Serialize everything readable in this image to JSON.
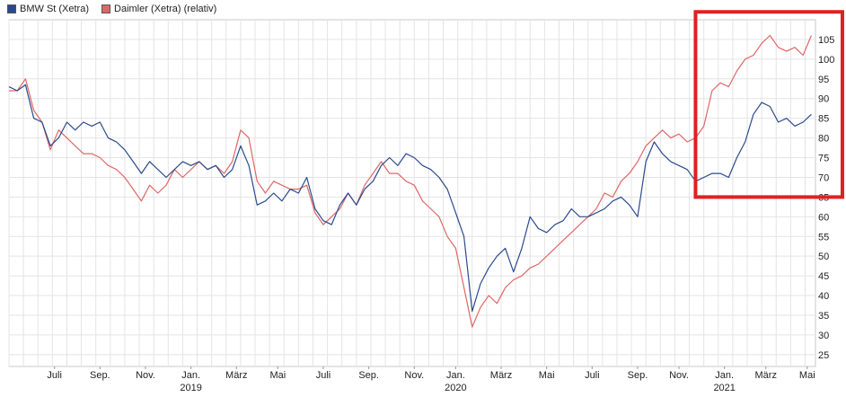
{
  "chart_data": {
    "type": "line",
    "series": [
      {
        "name": "BMW St (Xetra)",
        "color": "#2a4a8c",
        "points": [
          [
            0,
            93
          ],
          [
            2,
            92
          ],
          [
            4,
            93.5
          ],
          [
            6,
            85
          ],
          [
            8,
            84
          ],
          [
            10,
            78
          ],
          [
            12,
            80
          ],
          [
            14,
            84
          ],
          [
            16,
            82
          ],
          [
            18,
            84
          ],
          [
            20,
            83
          ],
          [
            22,
            84
          ],
          [
            24,
            80
          ],
          [
            26,
            79
          ],
          [
            28,
            77
          ],
          [
            30,
            74
          ],
          [
            32,
            71
          ],
          [
            34,
            74
          ],
          [
            36,
            72
          ],
          [
            38,
            70
          ],
          [
            40,
            72
          ],
          [
            42,
            74
          ],
          [
            44,
            73
          ],
          [
            46,
            74
          ],
          [
            48,
            72
          ],
          [
            50,
            73
          ],
          [
            52,
            70
          ],
          [
            54,
            72
          ],
          [
            56,
            78
          ],
          [
            58,
            73
          ],
          [
            60,
            63
          ],
          [
            62,
            64
          ],
          [
            64,
            66
          ],
          [
            66,
            64
          ],
          [
            68,
            67
          ],
          [
            70,
            66
          ],
          [
            72,
            70
          ],
          [
            74,
            62
          ],
          [
            76,
            59
          ],
          [
            78,
            58
          ],
          [
            80,
            63
          ],
          [
            82,
            66
          ],
          [
            84,
            63
          ],
          [
            86,
            67
          ],
          [
            88,
            69
          ],
          [
            90,
            73
          ],
          [
            92,
            75
          ],
          [
            94,
            73
          ],
          [
            96,
            76
          ],
          [
            98,
            75
          ],
          [
            100,
            73
          ],
          [
            102,
            72
          ],
          [
            104,
            70
          ],
          [
            106,
            67
          ],
          [
            108,
            61
          ],
          [
            110,
            55
          ],
          [
            112,
            36
          ],
          [
            114,
            43
          ],
          [
            116,
            47
          ],
          [
            118,
            50
          ],
          [
            120,
            52
          ],
          [
            122,
            46
          ],
          [
            124,
            52
          ],
          [
            126,
            60
          ],
          [
            128,
            57
          ],
          [
            130,
            56
          ],
          [
            132,
            58
          ],
          [
            134,
            59
          ],
          [
            136,
            62
          ],
          [
            138,
            60
          ],
          [
            140,
            60
          ],
          [
            142,
            61
          ],
          [
            144,
            62
          ],
          [
            146,
            64
          ],
          [
            148,
            65
          ],
          [
            150,
            63
          ],
          [
            152,
            60
          ],
          [
            154,
            74
          ],
          [
            156,
            79
          ],
          [
            158,
            76
          ],
          [
            160,
            74
          ],
          [
            162,
            73
          ],
          [
            164,
            72
          ],
          [
            166,
            69
          ],
          [
            168,
            70
          ],
          [
            170,
            71
          ],
          [
            172,
            71
          ],
          [
            174,
            70
          ],
          [
            176,
            75
          ],
          [
            178,
            79
          ],
          [
            180,
            86
          ],
          [
            182,
            89
          ],
          [
            184,
            88
          ],
          [
            186,
            84
          ],
          [
            188,
            85
          ],
          [
            190,
            83
          ],
          [
            192,
            84
          ],
          [
            194,
            86
          ]
        ]
      },
      {
        "name": "Daimler (Xetra) (relativ)",
        "color": "#e06666",
        "points": [
          [
            0,
            92
          ],
          [
            2,
            92
          ],
          [
            4,
            95
          ],
          [
            6,
            87
          ],
          [
            8,
            84
          ],
          [
            10,
            77
          ],
          [
            12,
            82
          ],
          [
            14,
            80
          ],
          [
            16,
            78
          ],
          [
            18,
            76
          ],
          [
            20,
            76
          ],
          [
            22,
            75
          ],
          [
            24,
            73
          ],
          [
            26,
            72
          ],
          [
            28,
            70
          ],
          [
            30,
            67
          ],
          [
            32,
            64
          ],
          [
            34,
            68
          ],
          [
            36,
            66
          ],
          [
            38,
            68
          ],
          [
            40,
            72
          ],
          [
            42,
            70
          ],
          [
            44,
            72
          ],
          [
            46,
            74
          ],
          [
            48,
            72
          ],
          [
            50,
            73
          ],
          [
            52,
            71
          ],
          [
            54,
            74
          ],
          [
            56,
            82
          ],
          [
            58,
            80
          ],
          [
            60,
            69
          ],
          [
            62,
            66
          ],
          [
            64,
            69
          ],
          [
            66,
            68
          ],
          [
            68,
            67
          ],
          [
            70,
            67
          ],
          [
            72,
            68
          ],
          [
            74,
            61
          ],
          [
            76,
            58
          ],
          [
            78,
            60
          ],
          [
            80,
            62
          ],
          [
            82,
            66
          ],
          [
            84,
            63
          ],
          [
            86,
            68
          ],
          [
            88,
            71
          ],
          [
            90,
            74
          ],
          [
            92,
            71
          ],
          [
            94,
            71
          ],
          [
            96,
            69
          ],
          [
            98,
            68
          ],
          [
            100,
            64
          ],
          [
            102,
            62
          ],
          [
            104,
            60
          ],
          [
            106,
            55
          ],
          [
            108,
            52
          ],
          [
            110,
            42
          ],
          [
            112,
            32
          ],
          [
            114,
            37
          ],
          [
            116,
            40
          ],
          [
            118,
            38
          ],
          [
            120,
            42
          ],
          [
            122,
            44
          ],
          [
            124,
            45
          ],
          [
            126,
            47
          ],
          [
            128,
            48
          ],
          [
            130,
            50
          ],
          [
            132,
            52
          ],
          [
            134,
            54
          ],
          [
            136,
            56
          ],
          [
            138,
            58
          ],
          [
            140,
            60
          ],
          [
            142,
            62
          ],
          [
            144,
            66
          ],
          [
            146,
            65
          ],
          [
            148,
            69
          ],
          [
            150,
            71
          ],
          [
            152,
            74
          ],
          [
            154,
            78
          ],
          [
            156,
            80
          ],
          [
            158,
            82
          ],
          [
            160,
            80
          ],
          [
            162,
            81
          ],
          [
            164,
            79
          ],
          [
            166,
            80
          ],
          [
            168,
            83
          ],
          [
            170,
            92
          ],
          [
            172,
            94
          ],
          [
            174,
            93
          ],
          [
            176,
            97
          ],
          [
            178,
            100
          ],
          [
            180,
            101
          ],
          [
            182,
            104
          ],
          [
            184,
            106
          ],
          [
            186,
            103
          ],
          [
            188,
            102
          ],
          [
            190,
            103
          ],
          [
            192,
            101
          ],
          [
            194,
            106
          ]
        ]
      }
    ],
    "xlim": [
      0,
      195
    ],
    "ylim": [
      22,
      110
    ],
    "y_ticks": [
      25,
      30,
      35,
      40,
      45,
      50,
      55,
      60,
      65,
      70,
      75,
      80,
      85,
      90,
      95,
      100,
      105
    ],
    "x_ticks": [
      {
        "x": 11,
        "label": "Juli"
      },
      {
        "x": 22,
        "label": "Sep."
      },
      {
        "x": 33,
        "label": "Nov."
      },
      {
        "x": 44,
        "label": "Jan."
      },
      {
        "x": 55,
        "label": "März"
      },
      {
        "x": 65,
        "label": "Mai"
      },
      {
        "x": 76,
        "label": "Juli"
      },
      {
        "x": 87,
        "label": "Sep."
      },
      {
        "x": 98,
        "label": "Nov."
      },
      {
        "x": 108,
        "label": "Jan."
      },
      {
        "x": 119,
        "label": "März"
      },
      {
        "x": 130,
        "label": "Mai"
      },
      {
        "x": 141,
        "label": "Juli"
      },
      {
        "x": 152,
        "label": "Sep."
      },
      {
        "x": 162,
        "label": "Nov."
      },
      {
        "x": 173,
        "label": "Jan."
      },
      {
        "x": 183,
        "label": "März"
      },
      {
        "x": 193,
        "label": "Mai"
      }
    ],
    "year_labels": [
      {
        "x": 44,
        "label": "2019"
      },
      {
        "x": 108,
        "label": "2020"
      },
      {
        "x": 173,
        "label": "2021"
      }
    ],
    "grid": true,
    "legend": "top-left",
    "highlight_box": {
      "x0": 166,
      "x1": 203,
      "y0": 65,
      "y1": 112,
      "color": "#dd2222"
    }
  }
}
